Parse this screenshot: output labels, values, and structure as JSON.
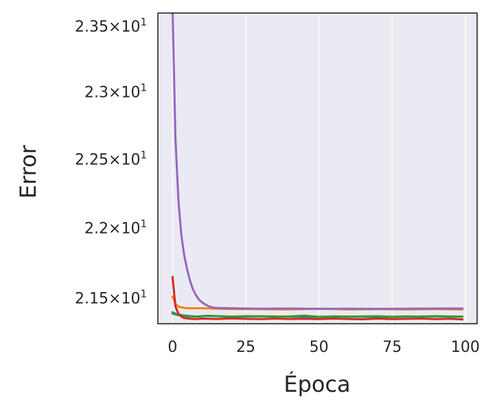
{
  "chart_data": {
    "type": "line",
    "xlabel": "Época",
    "ylabel": "Error",
    "xlim": [
      -5,
      104
    ],
    "ylim": [
      21.32,
      23.6
    ],
    "y_scale": "log",
    "x_ticks": [
      0,
      25,
      50,
      75,
      100
    ],
    "x_tick_labels": [
      "0",
      "25",
      "50",
      "75",
      "100"
    ],
    "y_ticks": [
      21.5,
      22.0,
      22.5,
      23.0,
      23.5
    ],
    "y_tick_labels": [
      {
        "mantissa": "2.15",
        "exp": "1"
      },
      {
        "mantissa": "2.2",
        "exp": "1"
      },
      {
        "mantissa": "2.25",
        "exp": "1"
      },
      {
        "mantissa": "2.3",
        "exp": "1"
      },
      {
        "mantissa": "2.35",
        "exp": "1"
      }
    ],
    "grid": true,
    "background_color": "#eaeaf2",
    "series": [
      {
        "color": "#1f77b4",
        "x": [
          0,
          1,
          2,
          3,
          5,
          8,
          12,
          20,
          30,
          40,
          50,
          60,
          70,
          80,
          90,
          99
        ],
        "values": [
          21.4,
          21.39,
          21.385,
          21.38,
          21.375,
          21.37,
          21.375,
          21.37,
          21.372,
          21.37,
          21.368,
          21.37,
          21.368,
          21.37,
          21.372,
          21.37
        ]
      },
      {
        "color": "#ff7f0e",
        "x": [
          0,
          1,
          2,
          3,
          4,
          6,
          10,
          15,
          20,
          30,
          40,
          50,
          60,
          70,
          80,
          90,
          99
        ],
        "values": [
          21.51,
          21.46,
          21.44,
          21.435,
          21.43,
          21.428,
          21.428,
          21.425,
          21.423,
          21.422,
          21.42,
          21.425,
          21.42,
          21.422,
          21.42,
          21.422,
          21.42
        ]
      },
      {
        "color": "#2ca02c",
        "x": [
          0,
          1,
          2,
          3,
          5,
          8,
          12,
          16,
          20,
          25,
          30,
          35,
          40,
          45,
          50,
          55,
          60,
          65,
          70,
          75,
          80,
          85,
          90,
          95,
          99
        ],
        "values": [
          21.39,
          21.385,
          21.38,
          21.378,
          21.372,
          21.37,
          21.375,
          21.372,
          21.37,
          21.373,
          21.372,
          21.369,
          21.371,
          21.376,
          21.368,
          21.372,
          21.369,
          21.371,
          21.373,
          21.368,
          21.372,
          21.37,
          21.373,
          21.369,
          21.37
        ]
      },
      {
        "color": "#d62728",
        "x": [
          0,
          1,
          2,
          3,
          4,
          6,
          8,
          10,
          15,
          20,
          25,
          30,
          35,
          40,
          45,
          50,
          55,
          60,
          65,
          70,
          75,
          80,
          85,
          90,
          95,
          99
        ],
        "values": [
          21.65,
          21.44,
          21.39,
          21.37,
          21.36,
          21.355,
          21.352,
          21.356,
          21.353,
          21.357,
          21.354,
          21.352,
          21.356,
          21.353,
          21.355,
          21.352,
          21.356,
          21.353,
          21.351,
          21.356,
          21.352,
          21.354,
          21.356,
          21.352,
          21.355,
          21.35
        ]
      },
      {
        "color": "#9467bd",
        "x": [
          0,
          1,
          2,
          3,
          4,
          5,
          6,
          7,
          8,
          9,
          10,
          12,
          14,
          16,
          20,
          25,
          30,
          40,
          50,
          60,
          70,
          80,
          90,
          99
        ],
        "values": [
          23.65,
          22.65,
          22.2,
          21.95,
          21.8,
          21.7,
          21.62,
          21.56,
          21.52,
          21.49,
          21.47,
          21.445,
          21.432,
          21.43,
          21.428,
          21.426,
          21.425,
          21.426,
          21.424,
          21.425,
          21.424,
          21.425,
          21.426,
          21.426
        ]
      }
    ]
  }
}
